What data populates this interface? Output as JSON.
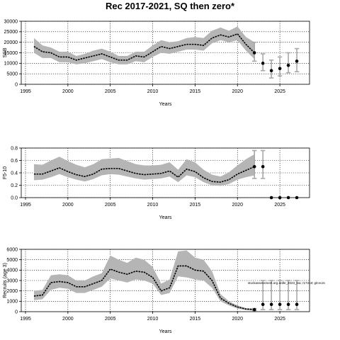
{
  "title": "Rec 2017-2021, SQ then zero*",
  "chart_data": [
    {
      "type": "line",
      "ylabel": "SSB",
      "xlabel": "Years",
      "xlim": [
        1994.5,
        2028.5
      ],
      "ylim": [
        0,
        30000
      ],
      "xticks": [
        1995,
        2000,
        2005,
        2010,
        2015,
        2020,
        2025
      ],
      "yticks": [
        0,
        5000,
        10000,
        15000,
        20000,
        25000,
        30000
      ],
      "grid": true,
      "x": [
        1996,
        1997,
        1998,
        1999,
        2000,
        2001,
        2002,
        2003,
        2004,
        2005,
        2006,
        2007,
        2008,
        2009,
        2010,
        2011,
        2012,
        2013,
        2014,
        2015,
        2016,
        2017,
        2018,
        2019,
        2020,
        2021,
        2022
      ],
      "values": [
        18000,
        15500,
        15000,
        13000,
        13000,
        11500,
        12500,
        13500,
        14500,
        13000,
        11500,
        11500,
        13500,
        13000,
        15500,
        18000,
        17000,
        18000,
        19000,
        19000,
        18500,
        22000,
        23500,
        22500,
        24000,
        19000,
        15000
      ],
      "lower": [
        15000,
        12500,
        12500,
        10500,
        10500,
        9500,
        10000,
        11000,
        12000,
        10500,
        9500,
        9500,
        11000,
        10500,
        13000,
        15000,
        14500,
        15500,
        16500,
        16500,
        16000,
        19500,
        21000,
        20000,
        21000,
        16000,
        12000
      ],
      "upper": [
        22000,
        18500,
        17500,
        15500,
        15500,
        13500,
        14500,
        16000,
        17000,
        15500,
        13500,
        13500,
        15500,
        15500,
        18500,
        21000,
        20000,
        20500,
        22000,
        22500,
        22000,
        25500,
        27000,
        25500,
        27500,
        22500,
        20000
      ],
      "projection": {
        "x": [
          2022,
          2023,
          2024,
          2025,
          2026,
          2027
        ],
        "values": [
          15000,
          10000,
          6500,
          7500,
          9000,
          11000
        ],
        "lower": [
          11000,
          6500,
          3000,
          4000,
          5500,
          6000
        ],
        "upper": [
          20000,
          14500,
          11500,
          13000,
          15000,
          17000
        ]
      }
    },
    {
      "type": "line",
      "ylabel": "F5-10",
      "xlabel": "Years",
      "xlim": [
        1994.5,
        2028.5
      ],
      "ylim": [
        0,
        0.8
      ],
      "xticks": [
        1995,
        2000,
        2005,
        2010,
        2015,
        2020,
        2025
      ],
      "yticks": [
        0.0,
        0.2,
        0.4,
        0.6,
        0.8
      ],
      "ytick_labels": [
        "0.0",
        "0.2",
        "0.4",
        "0.6",
        "0.8"
      ],
      "grid": true,
      "x": [
        1996,
        1997,
        1998,
        1999,
        2000,
        2001,
        2002,
        2003,
        2004,
        2005,
        2006,
        2007,
        2008,
        2009,
        2010,
        2011,
        2012,
        2013,
        2014,
        2015,
        2016,
        2017,
        2018,
        2019,
        2020,
        2021,
        2022
      ],
      "values": [
        0.38,
        0.38,
        0.43,
        0.48,
        0.42,
        0.37,
        0.34,
        0.38,
        0.46,
        0.47,
        0.47,
        0.43,
        0.39,
        0.37,
        0.38,
        0.39,
        0.43,
        0.33,
        0.46,
        0.42,
        0.32,
        0.26,
        0.25,
        0.29,
        0.38,
        0.44,
        0.5
      ],
      "lower": [
        0.28,
        0.29,
        0.33,
        0.38,
        0.33,
        0.29,
        0.26,
        0.3,
        0.36,
        0.38,
        0.37,
        0.34,
        0.31,
        0.29,
        0.3,
        0.31,
        0.34,
        0.25,
        0.36,
        0.33,
        0.25,
        0.2,
        0.19,
        0.22,
        0.29,
        0.33,
        0.36
      ],
      "upper": [
        0.54,
        0.53,
        0.6,
        0.66,
        0.59,
        0.53,
        0.49,
        0.54,
        0.62,
        0.63,
        0.64,
        0.59,
        0.54,
        0.52,
        0.52,
        0.53,
        0.57,
        0.45,
        0.62,
        0.57,
        0.45,
        0.37,
        0.34,
        0.41,
        0.52,
        0.62,
        0.7
      ],
      "projection": {
        "x": [
          2022,
          2023,
          2024,
          2025,
          2026,
          2027
        ],
        "values": [
          0.5,
          0.5,
          0.0,
          0.0,
          0.0,
          0.0
        ],
        "lower": [
          0.31,
          0.31,
          null,
          null,
          null,
          null
        ],
        "upper": [
          0.76,
          0.76,
          null,
          null,
          null,
          null
        ]
      }
    },
    {
      "type": "line",
      "ylabel": "Recruits (age 3)",
      "xlabel": "Years",
      "xlim": [
        1994.5,
        2028.5
      ],
      "ylim": [
        0,
        6000
      ],
      "xticks": [
        1995,
        2000,
        2005,
        2010,
        2015,
        2020,
        2025
      ],
      "yticks": [
        0,
        1000,
        2000,
        3000,
        4000,
        5000,
        6000
      ],
      "grid": true,
      "annotation": "stockassessment.org ardle_2023_lea; r17318; git:ec2c",
      "x": [
        1996,
        1997,
        1998,
        1999,
        2000,
        2001,
        2002,
        2003,
        2004,
        2005,
        2006,
        2007,
        2008,
        2009,
        2010,
        2011,
        2012,
        2013,
        2014,
        2015,
        2016,
        2017,
        2018,
        2019,
        2020,
        2021,
        2022
      ],
      "values": [
        1500,
        1600,
        2800,
        2900,
        2800,
        2400,
        2400,
        2700,
        3000,
        4100,
        3800,
        3600,
        3900,
        3800,
        3300,
        2000,
        2300,
        4400,
        4400,
        4000,
        3900,
        3000,
        1300,
        800,
        450,
        250,
        200
      ],
      "lower": [
        1100,
        1200,
        2100,
        2300,
        2200,
        1800,
        1800,
        2100,
        2400,
        3200,
        3000,
        2800,
        3100,
        3000,
        2700,
        1600,
        1800,
        3400,
        3300,
        3100,
        3000,
        2300,
        1000,
        600,
        300,
        150,
        100
      ],
      "upper": [
        2000,
        2100,
        3500,
        3600,
        3500,
        3000,
        3000,
        3400,
        3700,
        5400,
        5000,
        4700,
        5200,
        5000,
        4300,
        2700,
        3100,
        5800,
        5900,
        5200,
        5000,
        3900,
        1700,
        1000,
        600,
        350,
        300
      ],
      "projection": {
        "x": [
          2022,
          2023,
          2024,
          2025,
          2026,
          2027
        ],
        "values": [
          200,
          700,
          700,
          700,
          700,
          700
        ],
        "lower": [
          100,
          200,
          200,
          200,
          200,
          200
        ],
        "upper": [
          300,
          3000,
          3000,
          3000,
          3000,
          3000
        ]
      }
    }
  ]
}
